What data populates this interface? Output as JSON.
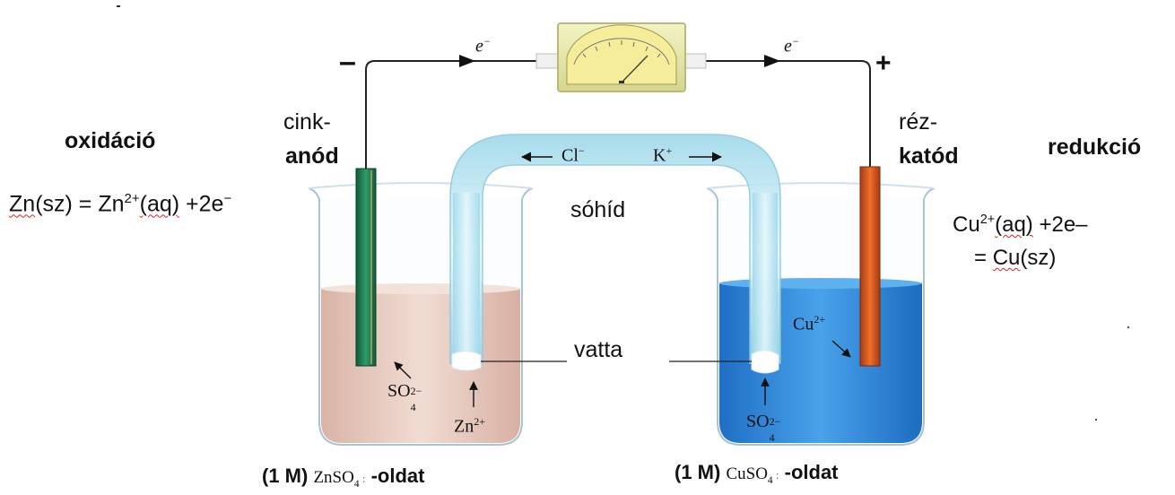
{
  "title_texts": {
    "left_process": "oxidáció",
    "right_process": "redukció",
    "salt_bridge": "sóhíd",
    "cotton": "vatta"
  },
  "signs": {
    "minus": "–",
    "plus": "+"
  },
  "wire": {
    "electron": "e",
    "electron_charge": "−"
  },
  "electrodes": {
    "anode_line1": "cink-",
    "anode_line2": "anód",
    "cathode_line1": "réz-",
    "cathode_line2": "katód"
  },
  "left_equation": {
    "zn": "Zn",
    "sz": "(sz) = Zn",
    "charge": "2+",
    "aq": "(aq)",
    "tail": " +2e",
    "minus": "−"
  },
  "right_equation": {
    "cu": "Cu",
    "charge": "2+",
    "aq": "(aq)",
    "tail": " +2e–",
    "eq": "= ",
    "cu2": "Cu",
    "sz": "(sz)"
  },
  "ions": {
    "cl": "Cl",
    "cl_charge": "−",
    "k": "K",
    "k_charge": "+",
    "so4": "SO",
    "so4_sub": "4",
    "so4_sup": "2−",
    "zn_ion": "Zn",
    "zn_charge": "2+",
    "cu_ion": "Cu",
    "cu_charge": "2+"
  },
  "solutions": {
    "left_conc": "(1 M)",
    "left_formula": "ZnSO",
    "left_sub": "4",
    "left_mark": " :",
    "left_suffix": "-oldat",
    "right_conc": "(1 M)",
    "right_formula": "CuSO",
    "right_sub": "4",
    "right_mark": " :",
    "right_suffix": "-oldat"
  },
  "colors": {
    "zinc_rod": "#1f7a4f",
    "copper_rod": "#d2551c",
    "left_solution": "#e7c9bd",
    "right_solution": "#2f86d8",
    "salt_bridge": "#bfe8f4",
    "voltmeter_face": "#f2e99c"
  }
}
